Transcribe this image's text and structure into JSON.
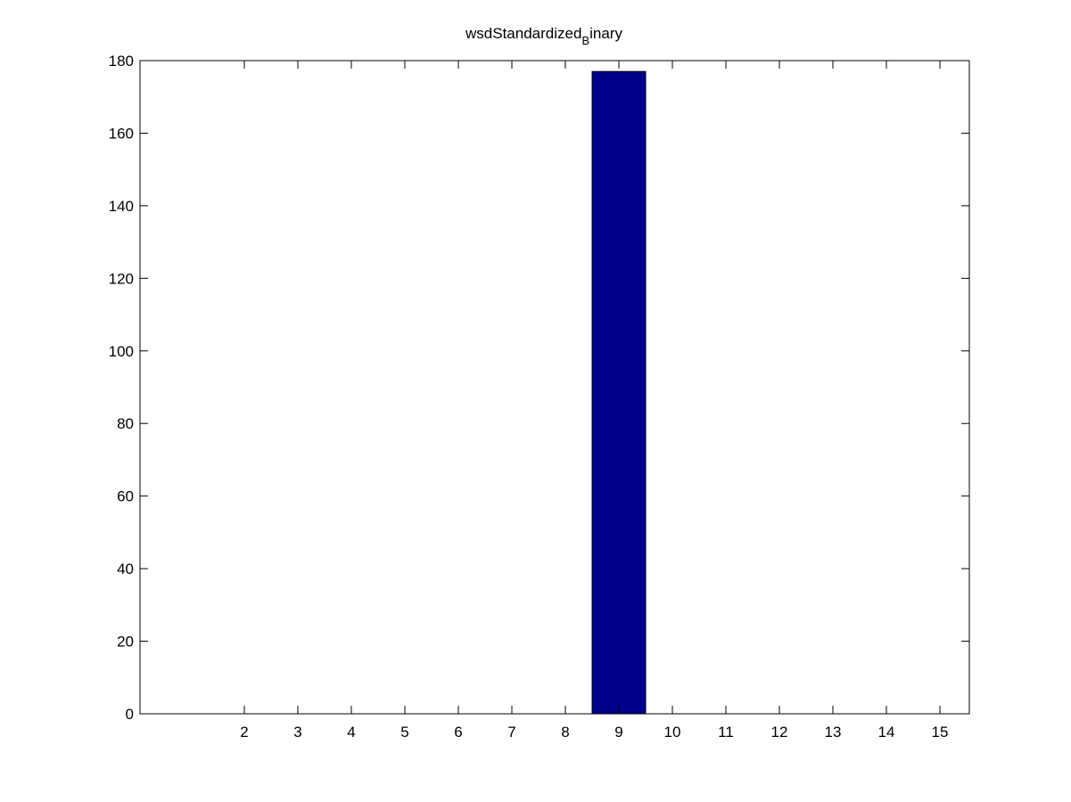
{
  "chart_data": {
    "type": "bar",
    "title": {
      "main": "wsdStandardized",
      "subscript": "B",
      "suffix": "inary"
    },
    "xlabel": "",
    "ylabel": "",
    "x_ticks": [
      "2",
      "3",
      "4",
      "5",
      "6",
      "7",
      "8",
      "9",
      "10",
      "11",
      "12",
      "13",
      "14",
      "15"
    ],
    "y_ticks": [
      "0",
      "20",
      "40",
      "60",
      "80",
      "100",
      "120",
      "140",
      "160",
      "180"
    ],
    "xlim": [
      0.05,
      15.55
    ],
    "ylim": [
      0,
      180
    ],
    "bar_width": 1.0,
    "x": [
      9
    ],
    "values": [
      177
    ],
    "bar_color": "#00008b",
    "grid": false,
    "legend": "none"
  }
}
